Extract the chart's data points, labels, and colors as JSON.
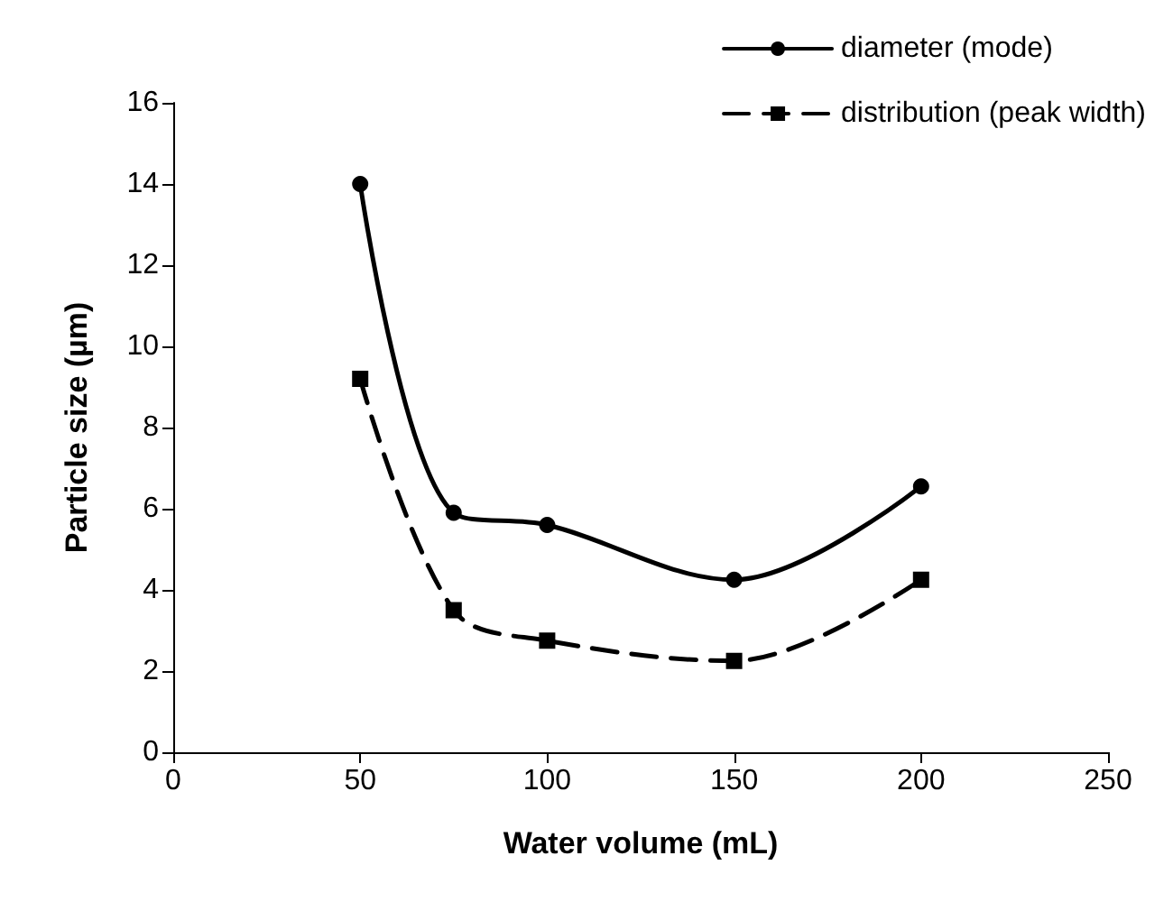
{
  "chart_data": {
    "type": "line",
    "xlabel": "Water volume (mL)",
    "ylabel": "Particle size (µm)",
    "x": [
      50,
      75,
      100,
      150,
      200
    ],
    "series": [
      {
        "name": "diameter (mode)",
        "color": "#000000",
        "values": [
          14.0,
          5.9,
          5.6,
          4.25,
          6.55
        ],
        "marker": "circle",
        "line_style": "solid"
      },
      {
        "name": "distribution (peak width)",
        "color": "#000000",
        "values": [
          9.2,
          3.5,
          2.75,
          2.25,
          4.25
        ],
        "marker": "square",
        "line_style": "dashed"
      }
    ],
    "xlim": [
      0,
      250
    ],
    "xticks": [
      0,
      50,
      100,
      150,
      200,
      250
    ],
    "ylim": [
      0,
      16
    ],
    "yticks": [
      0,
      2,
      4,
      6,
      8,
      10,
      12,
      14,
      16
    ],
    "grid": false,
    "legend": "top right"
  }
}
